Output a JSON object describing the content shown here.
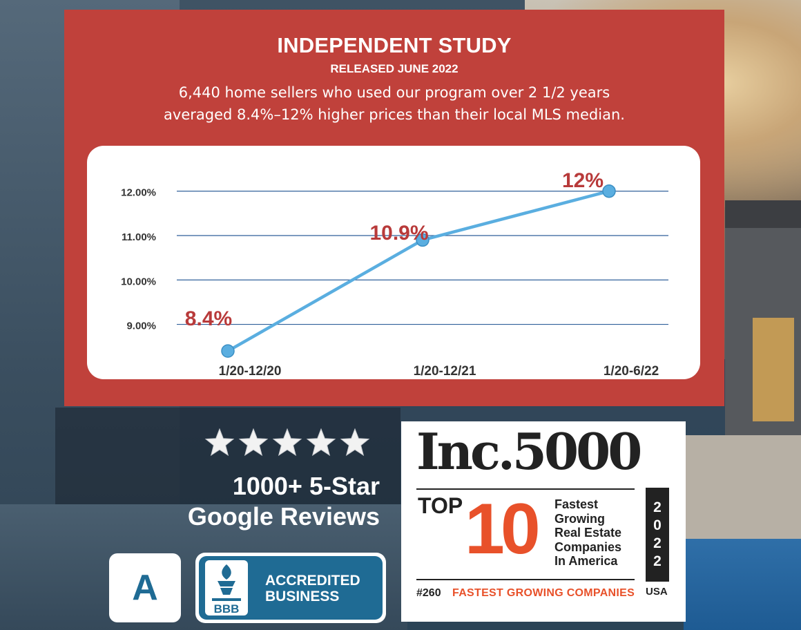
{
  "header": {
    "title": "INDEPENDENT STUDY",
    "subtitle": "RELEASED JUNE 2022",
    "description_line1": "6,440 home sellers who used our program over 2 1/2 years",
    "description_line2": "averaged 8.4%–12% higher prices than their local MLS median."
  },
  "chart_data": {
    "type": "line",
    "categories": [
      "1/20-12/20",
      "1/20-12/21",
      "1/20-6/22"
    ],
    "values": [
      8.4,
      10.9,
      12
    ],
    "data_labels": [
      "8.4%",
      "10.9%",
      "12%"
    ],
    "y_ticks": [
      9,
      10,
      11,
      12
    ],
    "y_tick_labels": [
      "9.00%",
      "10.00%",
      "11.00%",
      "12.00%"
    ],
    "ylim": [
      8.2,
      12.4
    ],
    "grid": true,
    "line_color": "#5aaee0",
    "label_color": "#b83a3a",
    "title": "",
    "xlabel": "",
    "ylabel": ""
  },
  "reviews": {
    "star_count": 5,
    "line1": "1000+ 5-Star",
    "line2": "Google Reviews"
  },
  "bbb": {
    "grade": "A",
    "logo_text": "BBB",
    "line1": "ACCREDITED",
    "line2": "BUSINESS"
  },
  "inc": {
    "title": "Inc.5000",
    "top_label": "TOP",
    "top_number": "10",
    "desc_lines": [
      "Fastest",
      "Growing",
      "Real Estate",
      "Companies",
      "In America"
    ],
    "year_digits": [
      "2",
      "0",
      "2",
      "2"
    ],
    "rank": "#260",
    "rank_text": "FASTEST GROWING COMPANIES",
    "country": "USA",
    "accent_color": "#e8512a"
  }
}
